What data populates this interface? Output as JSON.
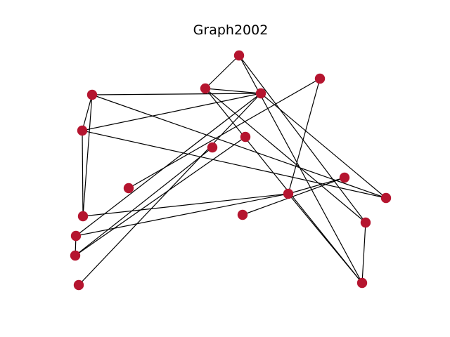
{
  "title": "Graph2002",
  "colors": {
    "node": "#b5152f",
    "edge": "#000000",
    "background": "#ffffff"
  },
  "graph": {
    "nodes": [
      "n0",
      "n1",
      "n2",
      "n3",
      "n4",
      "n5",
      "n6",
      "n7",
      "n8",
      "n9",
      "n10",
      "n11",
      "n12",
      "n13",
      "n14",
      "n15",
      "n16",
      "n17",
      "n18",
      "n19"
    ],
    "edges": [
      [
        "n0",
        "n2"
      ],
      [
        "n0",
        "n4"
      ],
      [
        "n0",
        "n16"
      ],
      [
        "n2",
        "n3"
      ],
      [
        "n2",
        "n18"
      ],
      [
        "n2",
        "n15"
      ],
      [
        "n1",
        "n3"
      ],
      [
        "n1",
        "n4"
      ],
      [
        "n1",
        "n10"
      ],
      [
        "n1",
        "n6"
      ],
      [
        "n1",
        "n12"
      ],
      [
        "n4",
        "n5"
      ],
      [
        "n4",
        "n9"
      ],
      [
        "n4",
        "n15"
      ],
      [
        "n4",
        "n18"
      ],
      [
        "n4",
        "n10"
      ],
      [
        "n5",
        "n6"
      ],
      [
        "n5",
        "n10"
      ],
      [
        "n5",
        "n16"
      ],
      [
        "n3",
        "n17"
      ],
      [
        "n3",
        "n18"
      ],
      [
        "n7",
        "n11"
      ],
      [
        "n7",
        "n12"
      ],
      [
        "n8",
        "n12"
      ],
      [
        "n8",
        "n14"
      ],
      [
        "n13",
        "n17"
      ],
      [
        "n14",
        "n19"
      ],
      [
        "n10",
        "n13"
      ],
      [
        "n10",
        "n17"
      ],
      [
        "n11",
        "n12"
      ],
      [
        "n16",
        "n15"
      ]
    ]
  }
}
